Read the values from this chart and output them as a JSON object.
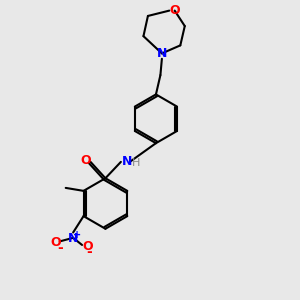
{
  "background_color": "#e8e8e8",
  "bond_color": "#000000",
  "atom_colors": {
    "O": "#ff0000",
    "N": "#0000ff",
    "N_amide": "#0000aa",
    "C": "#000000",
    "H": "#888888"
  },
  "figsize": [
    3.0,
    3.0
  ],
  "dpi": 100
}
